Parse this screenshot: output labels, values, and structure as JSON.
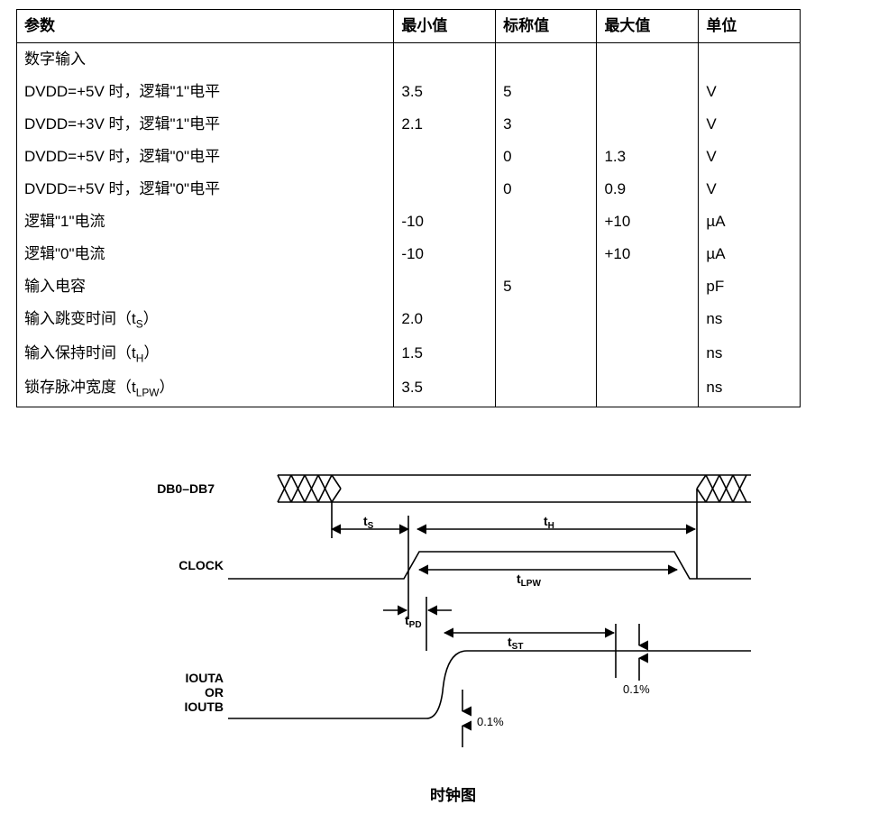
{
  "table": {
    "columns": [
      "参数",
      "最小值",
      "标称值",
      "最大值",
      "单位"
    ],
    "rows": [
      {
        "param": "数字输入",
        "min": "",
        "typ": "",
        "max": "",
        "unit": ""
      },
      {
        "param": "DVDD=+5V 时，逻辑\"1\"电平",
        "min": "3.5",
        "typ": "5",
        "max": "",
        "unit": "V"
      },
      {
        "param": "DVDD=+3V 时，逻辑\"1\"电平",
        "min": "2.1",
        "typ": "3",
        "max": "",
        "unit": "V"
      },
      {
        "param": "DVDD=+5V 时，逻辑\"0\"电平",
        "min": "",
        "typ": "0",
        "max": "1.3",
        "unit": "V"
      },
      {
        "param": "DVDD=+5V 时，逻辑\"0\"电平",
        "min": "",
        "typ": "0",
        "max": "0.9",
        "unit": "V"
      },
      {
        "param": "逻辑\"1\"电流",
        "min": "-10",
        "typ": "",
        "max": "+10",
        "unit": "µA"
      },
      {
        "param": "逻辑\"0\"电流",
        "min": "-10",
        "typ": "",
        "max": "+10",
        "unit": "µA"
      },
      {
        "param": "输入电容",
        "min": "",
        "typ": "5",
        "max": "",
        "unit": "pF"
      },
      {
        "param_html": "输入跳变时间（t<sub>S</sub>）",
        "min": "2.0",
        "typ": "",
        "max": "",
        "unit": "ns"
      },
      {
        "param_html": "输入保持时间（t<sub>H</sub>）",
        "min": "1.5",
        "typ": "",
        "max": "",
        "unit": "ns"
      },
      {
        "param_html": "锁存脉冲宽度（t<sub>LPW</sub>）",
        "min": "3.5",
        "typ": "",
        "max": "",
        "unit": "ns"
      }
    ]
  },
  "diagram": {
    "caption": "时钟图",
    "labels": {
      "data": "DB0–DB7",
      "clock": "CLOCK",
      "out": "IOUTA\nOR\nIOUTB",
      "ts": "tS",
      "th": "tH",
      "tlpw": "tLPW",
      "tpd": "tPD",
      "tst": "tST",
      "pct": "0.1%"
    },
    "style": {
      "stroke": "#000000",
      "stroke_width": 1.6,
      "font_size_label": 14,
      "font_size_small": 12
    }
  }
}
